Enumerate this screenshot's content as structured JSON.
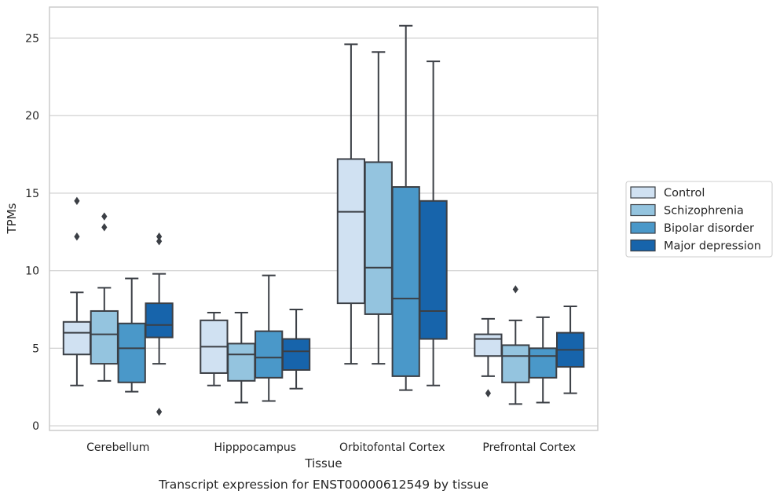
{
  "chart_data": {
    "type": "box",
    "title": "Transcript expression for ENST00000612549 by tissue",
    "xlabel": "Tissue",
    "ylabel": "TPMs",
    "ylim": [
      -0.3,
      27.0
    ],
    "yticks": [
      0,
      5,
      10,
      15,
      20,
      25
    ],
    "grid": "horizontal",
    "legend_position": "right",
    "categories": [
      "Cerebellum",
      "Hipppocampus",
      "Orbitofontal Cortex",
      "Prefrontal Cortex"
    ],
    "series": [
      {
        "name": "Control",
        "color": "#d0e1f2",
        "boxes": [
          {
            "whisker_low": 2.6,
            "q1": 4.6,
            "median": 6.0,
            "q3": 6.7,
            "whisker_high": 8.6,
            "outliers": [
              12.2,
              14.5
            ]
          },
          {
            "whisker_low": 2.6,
            "q1": 3.4,
            "median": 5.1,
            "q3": 6.8,
            "whisker_high": 7.3,
            "outliers": []
          },
          {
            "whisker_low": 4.0,
            "q1": 7.9,
            "median": 13.8,
            "q3": 17.2,
            "whisker_high": 24.6,
            "outliers": []
          },
          {
            "whisker_low": 3.2,
            "q1": 4.5,
            "median": 5.6,
            "q3": 5.9,
            "whisker_high": 6.9,
            "outliers": [
              2.1
            ]
          }
        ]
      },
      {
        "name": "Schizophrenia",
        "color": "#94c4df",
        "boxes": [
          {
            "whisker_low": 2.9,
            "q1": 4.0,
            "median": 5.9,
            "q3": 7.4,
            "whisker_high": 8.9,
            "outliers": [
              12.8,
              13.5
            ]
          },
          {
            "whisker_low": 1.5,
            "q1": 2.9,
            "median": 4.6,
            "q3": 5.3,
            "whisker_high": 7.3,
            "outliers": []
          },
          {
            "whisker_low": 4.0,
            "q1": 7.2,
            "median": 10.2,
            "q3": 17.0,
            "whisker_high": 24.1,
            "outliers": []
          },
          {
            "whisker_low": 1.4,
            "q1": 2.8,
            "median": 4.5,
            "q3": 5.2,
            "whisker_high": 6.8,
            "outliers": [
              8.8
            ]
          }
        ]
      },
      {
        "name": "Bipolar disorder",
        "color": "#4a98c9",
        "boxes": [
          {
            "whisker_low": 2.2,
            "q1": 2.8,
            "median": 5.0,
            "q3": 6.6,
            "whisker_high": 9.5,
            "outliers": []
          },
          {
            "whisker_low": 1.6,
            "q1": 3.1,
            "median": 4.4,
            "q3": 6.1,
            "whisker_high": 9.7,
            "outliers": []
          },
          {
            "whisker_low": 2.3,
            "q1": 3.2,
            "median": 8.2,
            "q3": 15.4,
            "whisker_high": 25.8,
            "outliers": []
          },
          {
            "whisker_low": 1.5,
            "q1": 3.1,
            "median": 4.5,
            "q3": 5.0,
            "whisker_high": 7.0,
            "outliers": []
          }
        ]
      },
      {
        "name": "Major depression",
        "color": "#1764ab",
        "boxes": [
          {
            "whisker_low": 4.0,
            "q1": 5.7,
            "median": 6.5,
            "q3": 7.9,
            "whisker_high": 9.8,
            "outliers": [
              0.9,
              11.9,
              12.2
            ]
          },
          {
            "whisker_low": 2.4,
            "q1": 3.6,
            "median": 4.8,
            "q3": 5.6,
            "whisker_high": 7.5,
            "outliers": []
          },
          {
            "whisker_low": 2.6,
            "q1": 5.6,
            "median": 7.4,
            "q3": 14.5,
            "whisker_high": 23.5,
            "outliers": []
          },
          {
            "whisker_low": 2.1,
            "q1": 3.8,
            "median": 4.9,
            "q3": 6.0,
            "whisker_high": 7.7,
            "outliers": []
          }
        ]
      }
    ]
  }
}
